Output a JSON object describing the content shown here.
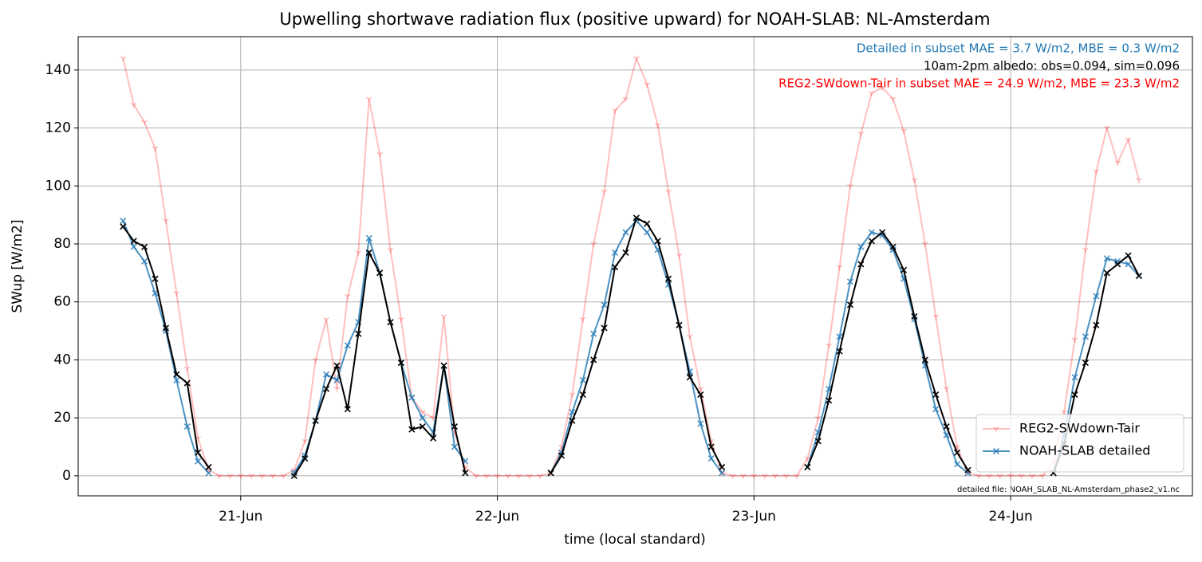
{
  "chart_data": {
    "type": "line",
    "title": "Upwelling shortwave radiation flux (positive upward) for NOAH-SLAB: NL-Amsterdam",
    "xlabel": "time (local standard)",
    "ylabel": "SWup [W/m2]",
    "x": [
      -11,
      -10,
      -9,
      -8,
      -7,
      -6,
      -5,
      -4,
      -3,
      -2,
      -1,
      0,
      1,
      2,
      3,
      4,
      5,
      6,
      7,
      8,
      9,
      10,
      11,
      12,
      13,
      14,
      15,
      16,
      17,
      18,
      19,
      20,
      21,
      22,
      23,
      24,
      25,
      26,
      27,
      28,
      29,
      30,
      31,
      32,
      33,
      34,
      35,
      36,
      37,
      38,
      39,
      40,
      41,
      42,
      43,
      44,
      45,
      46,
      47,
      48,
      49,
      50,
      51,
      52,
      53,
      54,
      55,
      56,
      57,
      58,
      59,
      60,
      61,
      62,
      63,
      64,
      65,
      66,
      67,
      68,
      69,
      70,
      71,
      72,
      73,
      74,
      75,
      76,
      77,
      78,
      79,
      80,
      81,
      82,
      83,
      84
    ],
    "xlim": [
      -15.2,
      89.0
    ],
    "xticks": [
      {
        "value": 0,
        "label": "21-Jun"
      },
      {
        "value": 24,
        "label": "22-Jun"
      },
      {
        "value": 48,
        "label": "23-Jun"
      },
      {
        "value": 72,
        "label": "24-Jun"
      }
    ],
    "ylim": [
      -6.9,
      151.5
    ],
    "yticks": [
      0,
      20,
      40,
      60,
      80,
      100,
      120,
      140
    ],
    "grid": true,
    "legend": "lower right",
    "series": [
      {
        "name": "REG2-SWdown-Tair",
        "color": "#ff0000",
        "opacity": 0.25,
        "marker": "tri",
        "legend": true,
        "values": [
          144,
          128,
          122,
          113,
          88,
          63,
          37,
          13,
          2,
          0,
          0,
          0,
          0,
          0,
          0,
          0,
          2,
          12,
          40,
          54,
          30,
          62,
          77,
          130,
          111,
          78,
          54,
          27,
          22,
          20,
          55,
          15,
          3,
          0,
          0,
          0,
          0,
          0,
          0,
          0,
          1,
          10,
          28,
          54,
          80,
          98,
          126,
          130,
          144,
          135,
          121,
          98,
          76,
          48,
          30,
          12,
          1,
          0,
          0,
          0,
          0,
          0,
          0,
          0,
          6,
          20,
          45,
          72,
          100,
          118,
          132,
          134,
          130,
          119,
          102,
          80,
          55,
          30,
          10,
          1,
          0,
          0,
          0,
          0,
          0,
          0,
          0,
          5,
          22,
          47,
          78,
          105,
          120,
          108,
          116,
          102
        ]
      },
      {
        "name": "NOAH-SLAB detailed",
        "color": "#1f77b4",
        "opacity": 0.8,
        "marker": "x",
        "legend": true,
        "values": [
          88,
          79,
          74,
          63,
          50,
          33,
          17,
          5,
          1,
          null,
          null,
          null,
          null,
          null,
          null,
          null,
          1,
          7,
          19,
          35,
          33,
          45,
          53,
          82,
          70,
          53,
          39,
          27,
          20,
          15,
          38,
          10,
          5,
          null,
          null,
          null,
          null,
          null,
          null,
          null,
          1,
          8,
          22,
          33,
          49,
          59,
          77,
          84,
          88,
          84,
          78,
          66,
          52,
          36,
          18,
          6,
          1,
          null,
          null,
          null,
          null,
          null,
          null,
          null,
          3,
          15,
          30,
          48,
          67,
          79,
          84,
          83,
          78,
          68,
          54,
          38,
          23,
          14,
          4,
          1,
          null,
          null,
          null,
          null,
          null,
          null,
          null,
          1,
          14,
          34,
          48,
          62,
          75,
          74,
          73,
          69
        ]
      },
      {
        "color": "#000000",
        "opacity": 1,
        "marker": "x",
        "legend": false,
        "values": [
          86,
          81,
          79,
          68,
          51,
          35,
          32,
          8,
          3,
          null,
          null,
          null,
          null,
          null,
          null,
          null,
          0,
          6,
          19,
          30,
          38,
          23,
          49,
          77,
          70,
          53,
          39,
          16,
          17,
          13,
          38,
          17,
          1,
          null,
          null,
          null,
          null,
          null,
          null,
          null,
          1,
          7,
          19,
          28,
          40,
          51,
          72,
          77,
          89,
          87,
          81,
          68,
          52,
          34,
          28,
          10,
          3,
          null,
          null,
          null,
          null,
          null,
          null,
          null,
          3,
          12,
          26,
          43,
          59,
          73,
          81,
          84,
          79,
          71,
          55,
          40,
          28,
          17,
          8,
          2,
          null,
          null,
          null,
          null,
          null,
          null,
          null,
          1,
          11,
          28,
          39,
          52,
          70,
          73,
          76,
          69
        ]
      }
    ],
    "annotations": [
      {
        "text": "Detailed in subset MAE = 3.7 W/m2, MBE = 0.3 W/m2",
        "color": "#1f77b4"
      },
      {
        "text": "10am-2pm albedo: obs=0.094, sim=0.096",
        "color": "#000000"
      },
      {
        "text": "REG2-SWdown-Tair in subset MAE = 24.9 W/m2, MBE = 23.3 W/m2",
        "color": "#ff0000"
      }
    ],
    "footnote": "detailed file: NOAH_SLAB_NL-Amsterdam_phase2_v1.nc"
  }
}
